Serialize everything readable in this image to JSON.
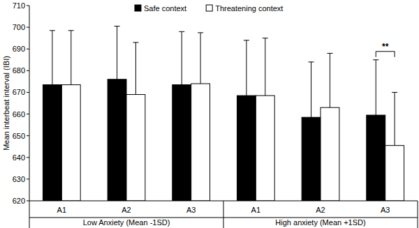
{
  "chart_data": {
    "type": "bar",
    "y_label": "Mean interbeat interval (IBI)",
    "categories": [
      "A1",
      "A2",
      "A3",
      "A1",
      "A2",
      "A3"
    ],
    "group_labels": [
      "Low Anxiety (Mean -1SD)",
      "High anxiety (Mean +1SD)"
    ],
    "series": [
      {
        "name": "Safe context",
        "color": "#000000",
        "values": [
          673.5,
          676,
          673.5,
          668.5,
          658.5,
          659.5
        ],
        "errors": [
          25,
          24.5,
          24.5,
          25.5,
          25.5,
          25.5
        ]
      },
      {
        "name": "Threatening context",
        "color": "#ffffff",
        "values": [
          673.5,
          669,
          674,
          668.5,
          663,
          645.5
        ],
        "errors": [
          25,
          24,
          23.5,
          26.5,
          25,
          24.5
        ]
      }
    ],
    "ylim": [
      620,
      710
    ],
    "yticks": [
      620,
      630,
      640,
      650,
      660,
      670,
      680,
      690,
      700,
      710
    ],
    "grid": false,
    "legend": "top",
    "annotations": [
      "**"
    ]
  }
}
